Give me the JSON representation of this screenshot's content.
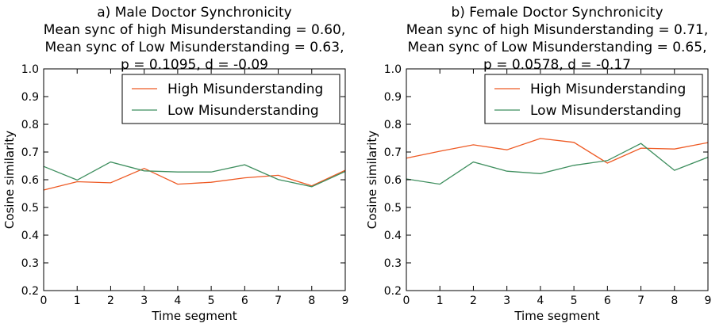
{
  "chart_data": [
    {
      "type": "line",
      "title_lines": [
        "a) Male Doctor Synchronicity",
        "Mean sync of high Misunderstanding = 0.60,",
        "Mean sync of Low Misunderstanding = 0.63,",
        "p = 0.1095, d = -0.09"
      ],
      "xlabel": "Time segment",
      "ylabel": "Cosine similarity",
      "xlim": [
        0,
        9
      ],
      "ylim": [
        0.2,
        1.0
      ],
      "x": [
        0,
        1,
        2,
        3,
        4,
        5,
        6,
        7,
        8,
        9
      ],
      "xticks": [
        "0",
        "1",
        "2",
        "3",
        "4",
        "5",
        "6",
        "7",
        "8",
        "9"
      ],
      "yticks": [
        "0.2",
        "0.3",
        "0.4",
        "0.5",
        "0.6",
        "0.7",
        "0.8",
        "0.9",
        "1.0"
      ],
      "grid": false,
      "legend_position": "top-right",
      "series": [
        {
          "name": "High Misunderstanding",
          "color": "#ee5a24",
          "values": [
            0.563,
            0.593,
            0.589,
            0.641,
            0.584,
            0.591,
            0.607,
            0.616,
            0.578,
            0.634
          ]
        },
        {
          "name": "Low Misunderstanding",
          "color": "#3f8f5f",
          "values": [
            0.648,
            0.599,
            0.664,
            0.632,
            0.628,
            0.628,
            0.654,
            0.601,
            0.575,
            0.63
          ]
        }
      ]
    },
    {
      "type": "line",
      "title_lines": [
        "b) Female Doctor Synchronicity",
        "Mean sync of high Misunderstanding = 0.71,",
        "Mean sync of Low Misunderstanding = 0.65,",
        "p = 0.0578, d = -0.17"
      ],
      "xlabel": "Time segment",
      "ylabel": "Cosine similarity",
      "xlim": [
        0,
        9
      ],
      "ylim": [
        0.2,
        1.0
      ],
      "x": [
        0,
        1,
        2,
        3,
        4,
        5,
        6,
        7,
        8,
        9
      ],
      "xticks": [
        "0",
        "1",
        "2",
        "3",
        "4",
        "5",
        "6",
        "7",
        "8",
        "9"
      ],
      "yticks": [
        "0.2",
        "0.3",
        "0.4",
        "0.5",
        "0.6",
        "0.7",
        "0.8",
        "0.9",
        "1.0"
      ],
      "grid": false,
      "legend_position": "top-right",
      "series": [
        {
          "name": "High Misunderstanding",
          "color": "#ee5a24",
          "values": [
            0.678,
            0.703,
            0.726,
            0.708,
            0.749,
            0.735,
            0.66,
            0.714,
            0.711,
            0.734
          ]
        },
        {
          "name": "Low Misunderstanding",
          "color": "#3f8f5f",
          "values": [
            0.603,
            0.584,
            0.664,
            0.631,
            0.622,
            0.652,
            0.669,
            0.731,
            0.634,
            0.681
          ]
        }
      ]
    }
  ]
}
